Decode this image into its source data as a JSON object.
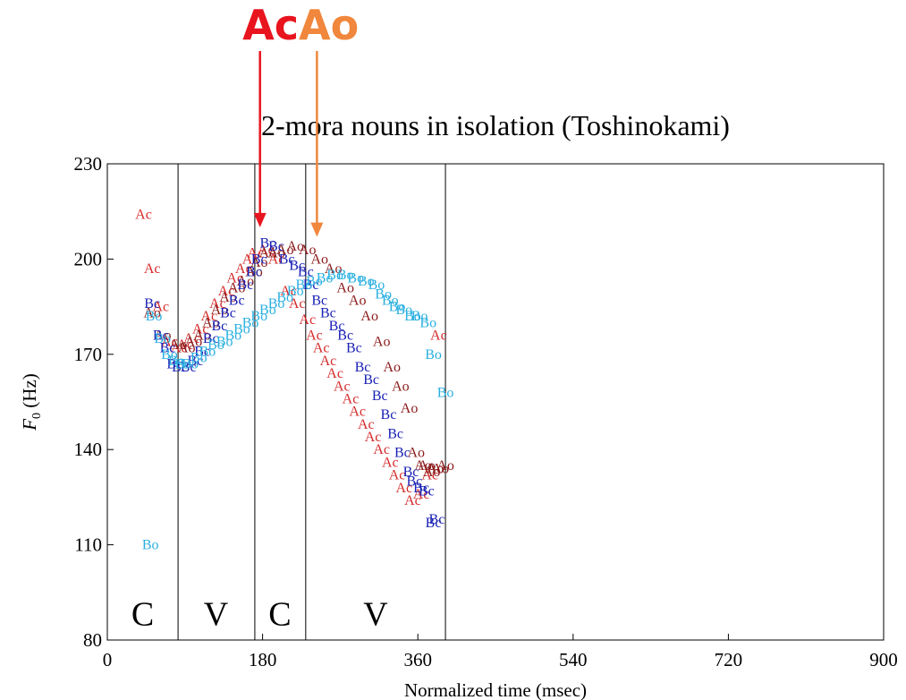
{
  "header": {
    "ac": "Ac",
    "ao": "Ao"
  },
  "colors": {
    "ac": "#e8141e",
    "ao": "#f0873c",
    "axis": "#000000"
  },
  "chart_data": {
    "type": "scatter",
    "title": "2-mora nouns in isolation (Toshinokami)",
    "xlabel": "Normalized time (msec)",
    "ylabel_main": "F",
    "ylabel_sub": "0",
    "ylabel_unit": " (Hz)",
    "xlim": [
      0,
      900
    ],
    "ylim": [
      80,
      230
    ],
    "xticks": [
      0,
      180,
      360,
      540,
      720,
      900
    ],
    "yticks": [
      80,
      110,
      140,
      170,
      200,
      230
    ],
    "grid": false,
    "segment_boundaries": [
      82,
      171,
      230,
      392
    ],
    "segment_labels": [
      {
        "text": "C",
        "x": 41
      },
      {
        "text": "V",
        "x": 126
      },
      {
        "text": "C",
        "x": 200
      },
      {
        "text": "V",
        "x": 311
      }
    ],
    "segment_label_y": 88,
    "arrows": [
      {
        "label": "Ac",
        "x": 177,
        "y": 210
      },
      {
        "label": "Ao",
        "x": 243,
        "y": 207
      }
    ],
    "series": [
      {
        "name": "Ac",
        "color": "#d52b2b",
        "points": [
          [
            42,
            214
          ],
          [
            52,
            197
          ],
          [
            62,
            185
          ],
          [
            72,
            174
          ],
          [
            83,
            172
          ],
          [
            90,
            173
          ],
          [
            98,
            175
          ],
          [
            108,
            178
          ],
          [
            118,
            182
          ],
          [
            128,
            186
          ],
          [
            138,
            190
          ],
          [
            148,
            194
          ],
          [
            158,
            197
          ],
          [
            166,
            200
          ],
          [
            172,
            202
          ],
          [
            184,
            203
          ],
          [
            196,
            200
          ],
          [
            210,
            190
          ],
          [
            220,
            186
          ],
          [
            232,
            181
          ],
          [
            240,
            176
          ],
          [
            248,
            172
          ],
          [
            256,
            168
          ],
          [
            264,
            164
          ],
          [
            272,
            160
          ],
          [
            282,
            156
          ],
          [
            290,
            152
          ],
          [
            300,
            148
          ],
          [
            308,
            144
          ],
          [
            318,
            140
          ],
          [
            328,
            136
          ],
          [
            336,
            132
          ],
          [
            344,
            128
          ],
          [
            354,
            124
          ],
          [
            364,
            126
          ],
          [
            374,
            132
          ],
          [
            384,
            176
          ]
        ]
      },
      {
        "name": "Ao",
        "color": "#8b1a1a",
        "points": [
          [
            52,
            183
          ],
          [
            64,
            176
          ],
          [
            82,
            173
          ],
          [
            92,
            172
          ],
          [
            100,
            174
          ],
          [
            110,
            176
          ],
          [
            120,
            180
          ],
          [
            130,
            184
          ],
          [
            140,
            188
          ],
          [
            150,
            191
          ],
          [
            160,
            193
          ],
          [
            170,
            196
          ],
          [
            176,
            199
          ],
          [
            186,
            202
          ],
          [
            196,
            202
          ],
          [
            206,
            203
          ],
          [
            218,
            204
          ],
          [
            232,
            203
          ],
          [
            246,
            200
          ],
          [
            262,
            197
          ],
          [
            276,
            191
          ],
          [
            290,
            187
          ],
          [
            304,
            182
          ],
          [
            318,
            174
          ],
          [
            330,
            166
          ],
          [
            340,
            160
          ],
          [
            350,
            153
          ],
          [
            358,
            139
          ],
          [
            366,
            135
          ],
          [
            376,
            133
          ],
          [
            386,
            134
          ],
          [
            392,
            135
          ],
          [
            380,
            134
          ],
          [
            370,
            135
          ]
        ]
      },
      {
        "name": "Bc",
        "color": "#1a22b4",
        "points": [
          [
            52,
            186
          ],
          [
            62,
            176
          ],
          [
            70,
            172
          ],
          [
            78,
            167
          ],
          [
            84,
            166
          ],
          [
            94,
            166
          ],
          [
            102,
            168
          ],
          [
            110,
            171
          ],
          [
            120,
            175
          ],
          [
            130,
            179
          ],
          [
            140,
            183
          ],
          [
            150,
            187
          ],
          [
            160,
            192
          ],
          [
            170,
            196
          ],
          [
            176,
            200
          ],
          [
            186,
            205
          ],
          [
            196,
            204
          ],
          [
            208,
            200
          ],
          [
            220,
            198
          ],
          [
            230,
            196
          ],
          [
            236,
            192
          ],
          [
            246,
            187
          ],
          [
            256,
            183
          ],
          [
            266,
            179
          ],
          [
            276,
            176
          ],
          [
            286,
            172
          ],
          [
            296,
            166
          ],
          [
            306,
            162
          ],
          [
            316,
            157
          ],
          [
            326,
            151
          ],
          [
            334,
            145
          ],
          [
            342,
            139
          ],
          [
            352,
            133
          ],
          [
            356,
            130
          ],
          [
            364,
            128
          ],
          [
            370,
            127
          ],
          [
            378,
            117
          ],
          [
            382,
            118
          ]
        ]
      },
      {
        "name": "Bo",
        "color": "#2bb0e0",
        "points": [
          [
            50,
            110
          ],
          [
            54,
            182
          ],
          [
            64,
            175
          ],
          [
            72,
            170
          ],
          [
            80,
            168
          ],
          [
            88,
            167
          ],
          [
            96,
            167
          ],
          [
            106,
            169
          ],
          [
            116,
            171
          ],
          [
            126,
            173
          ],
          [
            136,
            174
          ],
          [
            146,
            176
          ],
          [
            156,
            178
          ],
          [
            166,
            180
          ],
          [
            176,
            182
          ],
          [
            186,
            184
          ],
          [
            196,
            186
          ],
          [
            206,
            188
          ],
          [
            218,
            190
          ],
          [
            228,
            192
          ],
          [
            240,
            193
          ],
          [
            252,
            194
          ],
          [
            264,
            195
          ],
          [
            276,
            195
          ],
          [
            288,
            194
          ],
          [
            300,
            193
          ],
          [
            312,
            192
          ],
          [
            320,
            189
          ],
          [
            328,
            187
          ],
          [
            336,
            185
          ],
          [
            344,
            184
          ],
          [
            354,
            182
          ],
          [
            362,
            182
          ],
          [
            372,
            180
          ],
          [
            378,
            170
          ],
          [
            392,
            158
          ]
        ]
      }
    ]
  }
}
